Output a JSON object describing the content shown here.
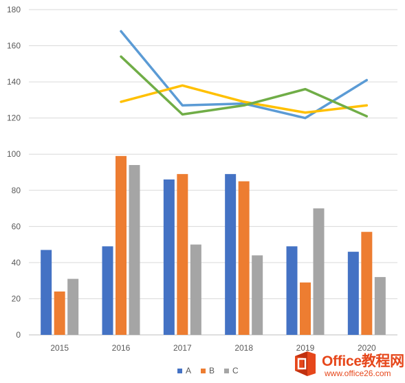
{
  "chart_data": {
    "type": "bar+line",
    "categories": [
      "2015",
      "2016",
      "2017",
      "2018",
      "2019",
      "2020"
    ],
    "ylim": [
      0,
      180
    ],
    "yticks": [
      "0",
      "20",
      "40",
      "60",
      "80",
      "100",
      "120",
      "140",
      "160",
      "180"
    ],
    "grid": true,
    "legend_position": "bottom",
    "bar_series": [
      {
        "name": "A",
        "color": "#4472c4",
        "values": [
          47,
          49,
          86,
          89,
          49,
          46
        ]
      },
      {
        "name": "B",
        "color": "#ed7d31",
        "values": [
          24,
          99,
          89,
          85,
          29,
          57
        ]
      },
      {
        "name": "C",
        "color": "#a5a5a5",
        "values": [
          31,
          94,
          50,
          44,
          70,
          32
        ]
      }
    ],
    "line_series": [
      {
        "color": "#5b9bd5",
        "values": [
          null,
          168,
          127,
          128,
          120,
          141
        ]
      },
      {
        "color": "#ffc000",
        "values": [
          null,
          129,
          138,
          129,
          123,
          127
        ]
      },
      {
        "color": "#70ad47",
        "values": [
          null,
          154,
          122,
          127,
          136,
          121
        ]
      }
    ]
  },
  "watermark": {
    "title": "Office教程网",
    "url": "www.office26.com",
    "color": "#e6471b"
  }
}
